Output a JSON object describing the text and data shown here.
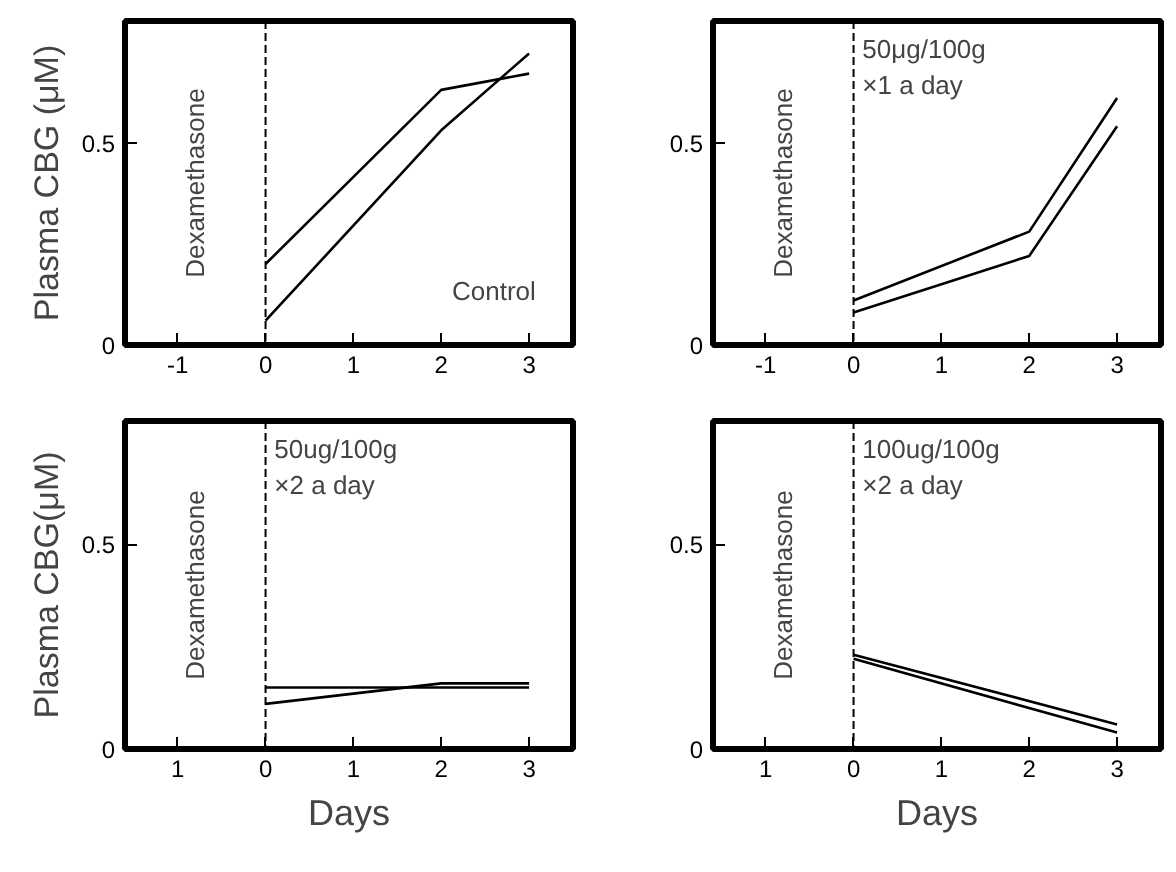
{
  "chart_data": [
    {
      "type": "line",
      "ylabel": "Plasma CBG (μM)",
      "xlim": [
        -1.6,
        3.5
      ],
      "ylim": [
        0,
        0.8
      ],
      "xticks": [
        -1,
        0,
        1,
        2,
        3
      ],
      "yticks": [
        0,
        0.5
      ],
      "series": [
        {
          "color": "#000000",
          "x": [
            0,
            2,
            3
          ],
          "values": [
            0.2,
            0.63,
            0.67
          ]
        },
        {
          "color": "#000000",
          "x": [
            0,
            2,
            3
          ],
          "values": [
            0.06,
            0.53,
            0.72
          ]
        }
      ],
      "ref_lines": [
        {
          "axis": "x",
          "value": 0,
          "label": "Dexamethasone",
          "line_style": "dashed"
        }
      ],
      "annotations": [
        "Control"
      ]
    },
    {
      "type": "line",
      "xlim": [
        -1.6,
        3.5
      ],
      "ylim": [
        0,
        0.8
      ],
      "xticks": [
        -1,
        0,
        1,
        2,
        3
      ],
      "yticks": [
        0,
        0.5
      ],
      "series": [
        {
          "color": "#000000",
          "x": [
            0,
            2,
            3
          ],
          "values": [
            0.11,
            0.28,
            0.61
          ]
        },
        {
          "color": "#000000",
          "x": [
            0,
            2,
            3
          ],
          "values": [
            0.08,
            0.22,
            0.54
          ]
        }
      ],
      "ref_lines": [
        {
          "axis": "x",
          "value": 0,
          "label": "Dexamethasone",
          "line_style": "dashed"
        }
      ],
      "annotations": [
        "50μg/100g\n×1  a day"
      ]
    },
    {
      "type": "line",
      "ylabel": "Plasma CBG(μM)",
      "xlabel": "Days",
      "xlim": [
        -1.6,
        3.5
      ],
      "ylim": [
        0,
        0.8
      ],
      "xticks": [
        {
          "value": -1,
          "label": "1"
        },
        0,
        1,
        2,
        3
      ],
      "yticks": [
        0,
        0.5
      ],
      "series": [
        {
          "color": "#000000",
          "x": [
            0,
            2,
            3
          ],
          "values": [
            0.15,
            0.15,
            0.15
          ]
        },
        {
          "color": "#000000",
          "x": [
            0,
            2,
            3
          ],
          "values": [
            0.11,
            0.16,
            0.16
          ]
        }
      ],
      "ref_lines": [
        {
          "axis": "x",
          "value": 0,
          "label": "Dexamethasone",
          "line_style": "dashed"
        }
      ],
      "annotations": [
        "50ug/100g\n×2 a day"
      ]
    },
    {
      "type": "line",
      "xlabel": "Days",
      "xlim": [
        -1.6,
        3.5
      ],
      "ylim": [
        0,
        0.8
      ],
      "xticks": [
        {
          "value": -1,
          "label": "1"
        },
        0,
        1,
        2,
        3
      ],
      "yticks": [
        0,
        0.5
      ],
      "series": [
        {
          "color": "#000000",
          "x": [
            0,
            3
          ],
          "values": [
            0.23,
            0.06
          ]
        },
        {
          "color": "#000000",
          "x": [
            0,
            3
          ],
          "values": [
            0.22,
            0.04
          ]
        }
      ],
      "ref_lines": [
        {
          "axis": "x",
          "value": 0,
          "label": "Dexamethasone",
          "line_style": "dashed"
        }
      ],
      "annotations": [
        "100ug/100g\n×2 a day"
      ]
    }
  ]
}
